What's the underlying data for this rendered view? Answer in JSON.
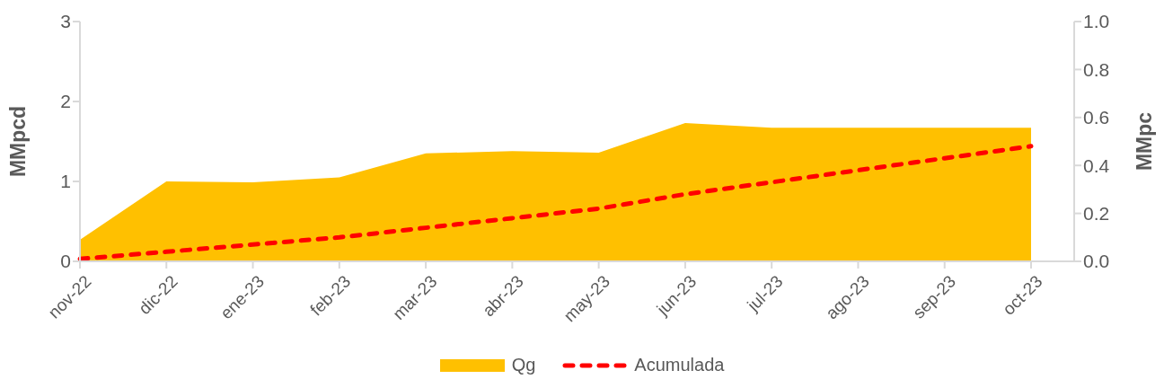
{
  "chart_data": {
    "type": "area",
    "categories": [
      "nov-22",
      "dic-22",
      "ene-23",
      "feb-23",
      "mar-23",
      "abr-23",
      "may-23",
      "jun-23",
      "jul-23",
      "ago-23",
      "sep-23",
      "oct-23"
    ],
    "series": [
      {
        "name": "Qg",
        "color": "#ffc000",
        "values": [
          0.27,
          1.0,
          0.99,
          1.05,
          1.35,
          1.38,
          1.36,
          1.73,
          1.67,
          1.67,
          1.67,
          1.67
        ]
      },
      {
        "name": "Acumulada",
        "type": "line",
        "axis": "y2",
        "color": "#ff0000",
        "line_style": "dashed",
        "values": [
          0.01,
          0.04,
          0.07,
          0.1,
          0.14,
          0.18,
          0.22,
          0.28,
          0.33,
          0.38,
          0.43,
          0.48
        ]
      }
    ],
    "ylabel": "MMpcd",
    "y2label": "MMpc",
    "ylim": [
      0,
      3
    ],
    "yticks": [
      0,
      1,
      2,
      3
    ],
    "y2lim": [
      0,
      1
    ],
    "y2ticks": [
      {
        "value": 0,
        "label": "0.0"
      },
      {
        "value": 0.2,
        "label": "0.2"
      },
      {
        "value": 0.4,
        "label": "0.4"
      },
      {
        "value": 0.6,
        "label": "0.6"
      },
      {
        "value": 0.8,
        "label": "0.8"
      },
      {
        "value": 1,
        "label": "1.0"
      }
    ],
    "legend": "bottom"
  }
}
